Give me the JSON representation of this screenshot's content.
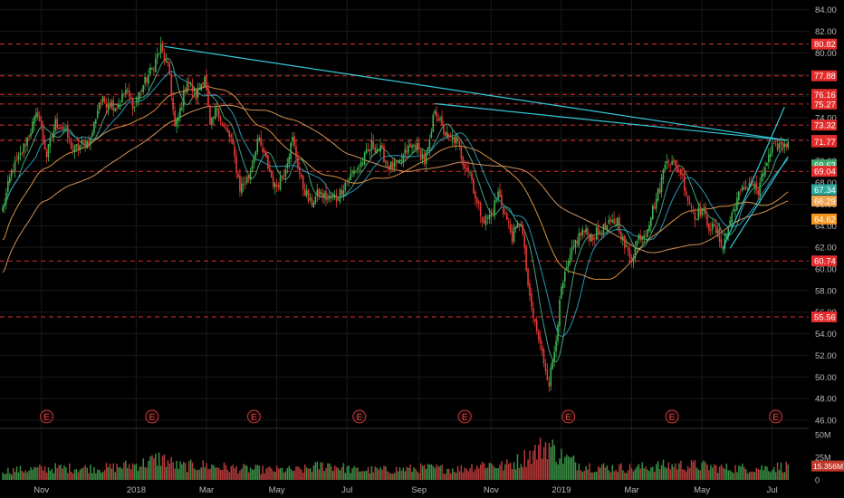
{
  "chart_data": {
    "type": "candlestick",
    "title": "",
    "price_axis": {
      "min": 45.5,
      "max": 84.9,
      "ticks": [
        84,
        82,
        80,
        78,
        76,
        74,
        72,
        70,
        68,
        66,
        64,
        62,
        60,
        58,
        56,
        54,
        52,
        50,
        48,
        46
      ],
      "tick_labels": [
        "84.00",
        "82.00",
        "80.00",
        "78.00",
        "76.00",
        "74.00",
        "72.00",
        "70.00",
        "68.00",
        "66.00",
        "64.00",
        "62.00",
        "60.00",
        "58.00",
        "56.00",
        "54.00",
        "52.00",
        "50.00",
        "48.00",
        "46.00"
      ]
    },
    "volume_axis": {
      "min": 0,
      "max": 54,
      "ticks": [
        50,
        25,
        0
      ],
      "tick_labels": [
        "50M",
        "25M",
        "0"
      ],
      "last_volume_label": "15.356M"
    },
    "time_axis": {
      "labels": [
        "Nov",
        "2018",
        "Mar",
        "May",
        "Jul",
        "Sep",
        "Nov",
        "2019",
        "Mar",
        "May",
        "Jul"
      ],
      "label_bar_index": [
        22,
        76,
        116,
        156,
        196,
        237,
        278,
        318,
        358,
        398,
        438
      ]
    },
    "horizontal_levels": [
      80.82,
      77.88,
      76.16,
      75.27,
      73.32,
      71.9,
      69.04,
      60.74,
      55.56
    ],
    "price_badges": [
      {
        "label": "80.82",
        "value": 80.82,
        "color": "#e52c2c"
      },
      {
        "label": "77.88",
        "value": 77.88,
        "color": "#e52c2c"
      },
      {
        "label": "76.16",
        "value": 76.16,
        "color": "#e52c2c"
      },
      {
        "label": "75.27",
        "value": 75.27,
        "color": "#e52c2c"
      },
      {
        "label": "73.32",
        "value": 73.32,
        "color": "#e52c2c"
      },
      {
        "label": "71.90",
        "value": 71.9,
        "color": "#e52c2c"
      },
      {
        "label": "71.77",
        "value": 71.77,
        "color": "#e52c2c"
      },
      {
        "label": "69.63",
        "value": 69.63,
        "color": "#3fa96b"
      },
      {
        "label": "69.04",
        "value": 69.04,
        "color": "#e52c2c"
      },
      {
        "label": "67.34",
        "value": 67.34,
        "color": "#2ea89b"
      },
      {
        "label": "66.29",
        "value": 66.29,
        "color": "#f0a048"
      },
      {
        "label": "64.62",
        "value": 64.62,
        "color": "#f7941e"
      },
      {
        "label": "60.74",
        "value": 60.74,
        "color": "#e52c2c"
      },
      {
        "label": "55.56",
        "value": 55.56,
        "color": "#e52c2c"
      }
    ],
    "earnings_markers": {
      "label": "E",
      "bar_index": [
        25,
        85,
        143,
        203,
        263,
        322,
        381,
        440
      ]
    },
    "trendlines": [
      {
        "from": {
          "bar": 92,
          "price": 80.6
        },
        "to": {
          "bar": 447,
          "price": 71.9
        }
      },
      {
        "from": {
          "bar": 246,
          "price": 75.3
        },
        "to": {
          "bar": 447,
          "price": 71.9
        }
      },
      {
        "from": {
          "bar": 410,
          "price": 61.9
        },
        "to": {
          "bar": 445,
          "price": 75.0
        }
      },
      {
        "from": {
          "bar": 414,
          "price": 61.9
        },
        "to": {
          "bar": 447,
          "price": 70.4
        }
      }
    ],
    "price_anchors": [
      [
        0,
        65.5
      ],
      [
        5,
        69.0
      ],
      [
        10,
        70.5
      ],
      [
        15,
        72.5
      ],
      [
        20,
        74.5
      ],
      [
        25,
        70.5
      ],
      [
        30,
        73.5
      ],
      [
        35,
        73.0
      ],
      [
        40,
        71.0
      ],
      [
        45,
        71.5
      ],
      [
        50,
        72.0
      ],
      [
        55,
        75.5
      ],
      [
        60,
        75.5
      ],
      [
        65,
        75.0
      ],
      [
        70,
        76.5
      ],
      [
        75,
        75.0
      ],
      [
        80,
        77.0
      ],
      [
        85,
        78.5
      ],
      [
        90,
        80.5
      ],
      [
        95,
        78.0
      ],
      [
        98,
        73.0
      ],
      [
        100,
        74.0
      ],
      [
        105,
        77.5
      ],
      [
        110,
        76.0
      ],
      [
        115,
        78.0
      ],
      [
        118,
        73.0
      ],
      [
        122,
        75.0
      ],
      [
        126,
        73.0
      ],
      [
        130,
        72.0
      ],
      [
        135,
        67.5
      ],
      [
        140,
        68.5
      ],
      [
        145,
        72.0
      ],
      [
        150,
        70.0
      ],
      [
        155,
        67.5
      ],
      [
        160,
        69.0
      ],
      [
        165,
        72.0
      ],
      [
        170,
        68.0
      ],
      [
        175,
        66.0
      ],
      [
        180,
        67.0
      ],
      [
        185,
        66.5
      ],
      [
        190,
        66.5
      ],
      [
        195,
        68.0
      ],
      [
        200,
        69.0
      ],
      [
        205,
        70.0
      ],
      [
        210,
        71.5
      ],
      [
        215,
        71.0
      ],
      [
        220,
        69.5
      ],
      [
        225,
        69.5
      ],
      [
        230,
        71.0
      ],
      [
        235,
        71.5
      ],
      [
        240,
        70.0
      ],
      [
        243,
        71.5
      ],
      [
        246,
        75.0
      ],
      [
        250,
        73.0
      ],
      [
        254,
        72.0
      ],
      [
        258,
        72.0
      ],
      [
        262,
        70.0
      ],
      [
        266,
        69.0
      ],
      [
        270,
        66.0
      ],
      [
        274,
        64.5
      ],
      [
        278,
        65.0
      ],
      [
        282,
        67.0
      ],
      [
        286,
        65.0
      ],
      [
        290,
        63.0
      ],
      [
        295,
        64.5
      ],
      [
        300,
        57.0
      ],
      [
        305,
        53.5
      ],
      [
        308,
        51.5
      ],
      [
        311,
        49.5
      ],
      [
        314,
        52.5
      ],
      [
        318,
        58.0
      ],
      [
        322,
        60.5
      ],
      [
        326,
        62.5
      ],
      [
        330,
        63.5
      ],
      [
        335,
        63.0
      ],
      [
        340,
        63.5
      ],
      [
        345,
        64.0
      ],
      [
        350,
        64.5
      ],
      [
        354,
        62.0
      ],
      [
        358,
        61.0
      ],
      [
        362,
        63.0
      ],
      [
        366,
        63.5
      ],
      [
        370,
        65.5
      ],
      [
        374,
        67.5
      ],
      [
        378,
        70.5
      ],
      [
        382,
        69.5
      ],
      [
        386,
        69.0
      ],
      [
        390,
        66.5
      ],
      [
        394,
        65.0
      ],
      [
        398,
        65.5
      ],
      [
        402,
        64.0
      ],
      [
        406,
        63.5
      ],
      [
        410,
        62.0
      ],
      [
        414,
        64.5
      ],
      [
        418,
        66.5
      ],
      [
        422,
        67.5
      ],
      [
        426,
        68.0
      ],
      [
        430,
        67.0
      ],
      [
        434,
        69.5
      ],
      [
        438,
        71.0
      ],
      [
        442,
        71.5
      ],
      [
        447,
        71.77
      ]
    ],
    "volume_anchors": [
      [
        0,
        10
      ],
      [
        30,
        13
      ],
      [
        60,
        13
      ],
      [
        80,
        18
      ],
      [
        90,
        24
      ],
      [
        100,
        15
      ],
      [
        115,
        16
      ],
      [
        130,
        13
      ],
      [
        150,
        11
      ],
      [
        170,
        11
      ],
      [
        185,
        17
      ],
      [
        200,
        11
      ],
      [
        220,
        11
      ],
      [
        240,
        13
      ],
      [
        260,
        12
      ],
      [
        275,
        18
      ],
      [
        285,
        15
      ],
      [
        295,
        22
      ],
      [
        300,
        28
      ],
      [
        305,
        33
      ],
      [
        310,
        40
      ],
      [
        315,
        30
      ],
      [
        320,
        24
      ],
      [
        330,
        16
      ],
      [
        340,
        14
      ],
      [
        360,
        13
      ],
      [
        370,
        15
      ],
      [
        380,
        16
      ],
      [
        395,
        16
      ],
      [
        410,
        13
      ],
      [
        430,
        13
      ],
      [
        447,
        15
      ]
    ],
    "moving_averages": [
      {
        "period": 10,
        "color": "#4bb38c"
      },
      {
        "period": 20,
        "color": "#2aa5c9"
      },
      {
        "period": 50,
        "color": "#f0a048"
      },
      {
        "period": 100,
        "color": "#e8a060"
      }
    ],
    "colors": {
      "background": "#000000",
      "up": "#3fb34f",
      "down": "#e53935",
      "level_line": "#d83030",
      "trendline": "#35c8d8",
      "grid": "#1a1a1a",
      "axis_text": "#b8b8b8"
    }
  }
}
